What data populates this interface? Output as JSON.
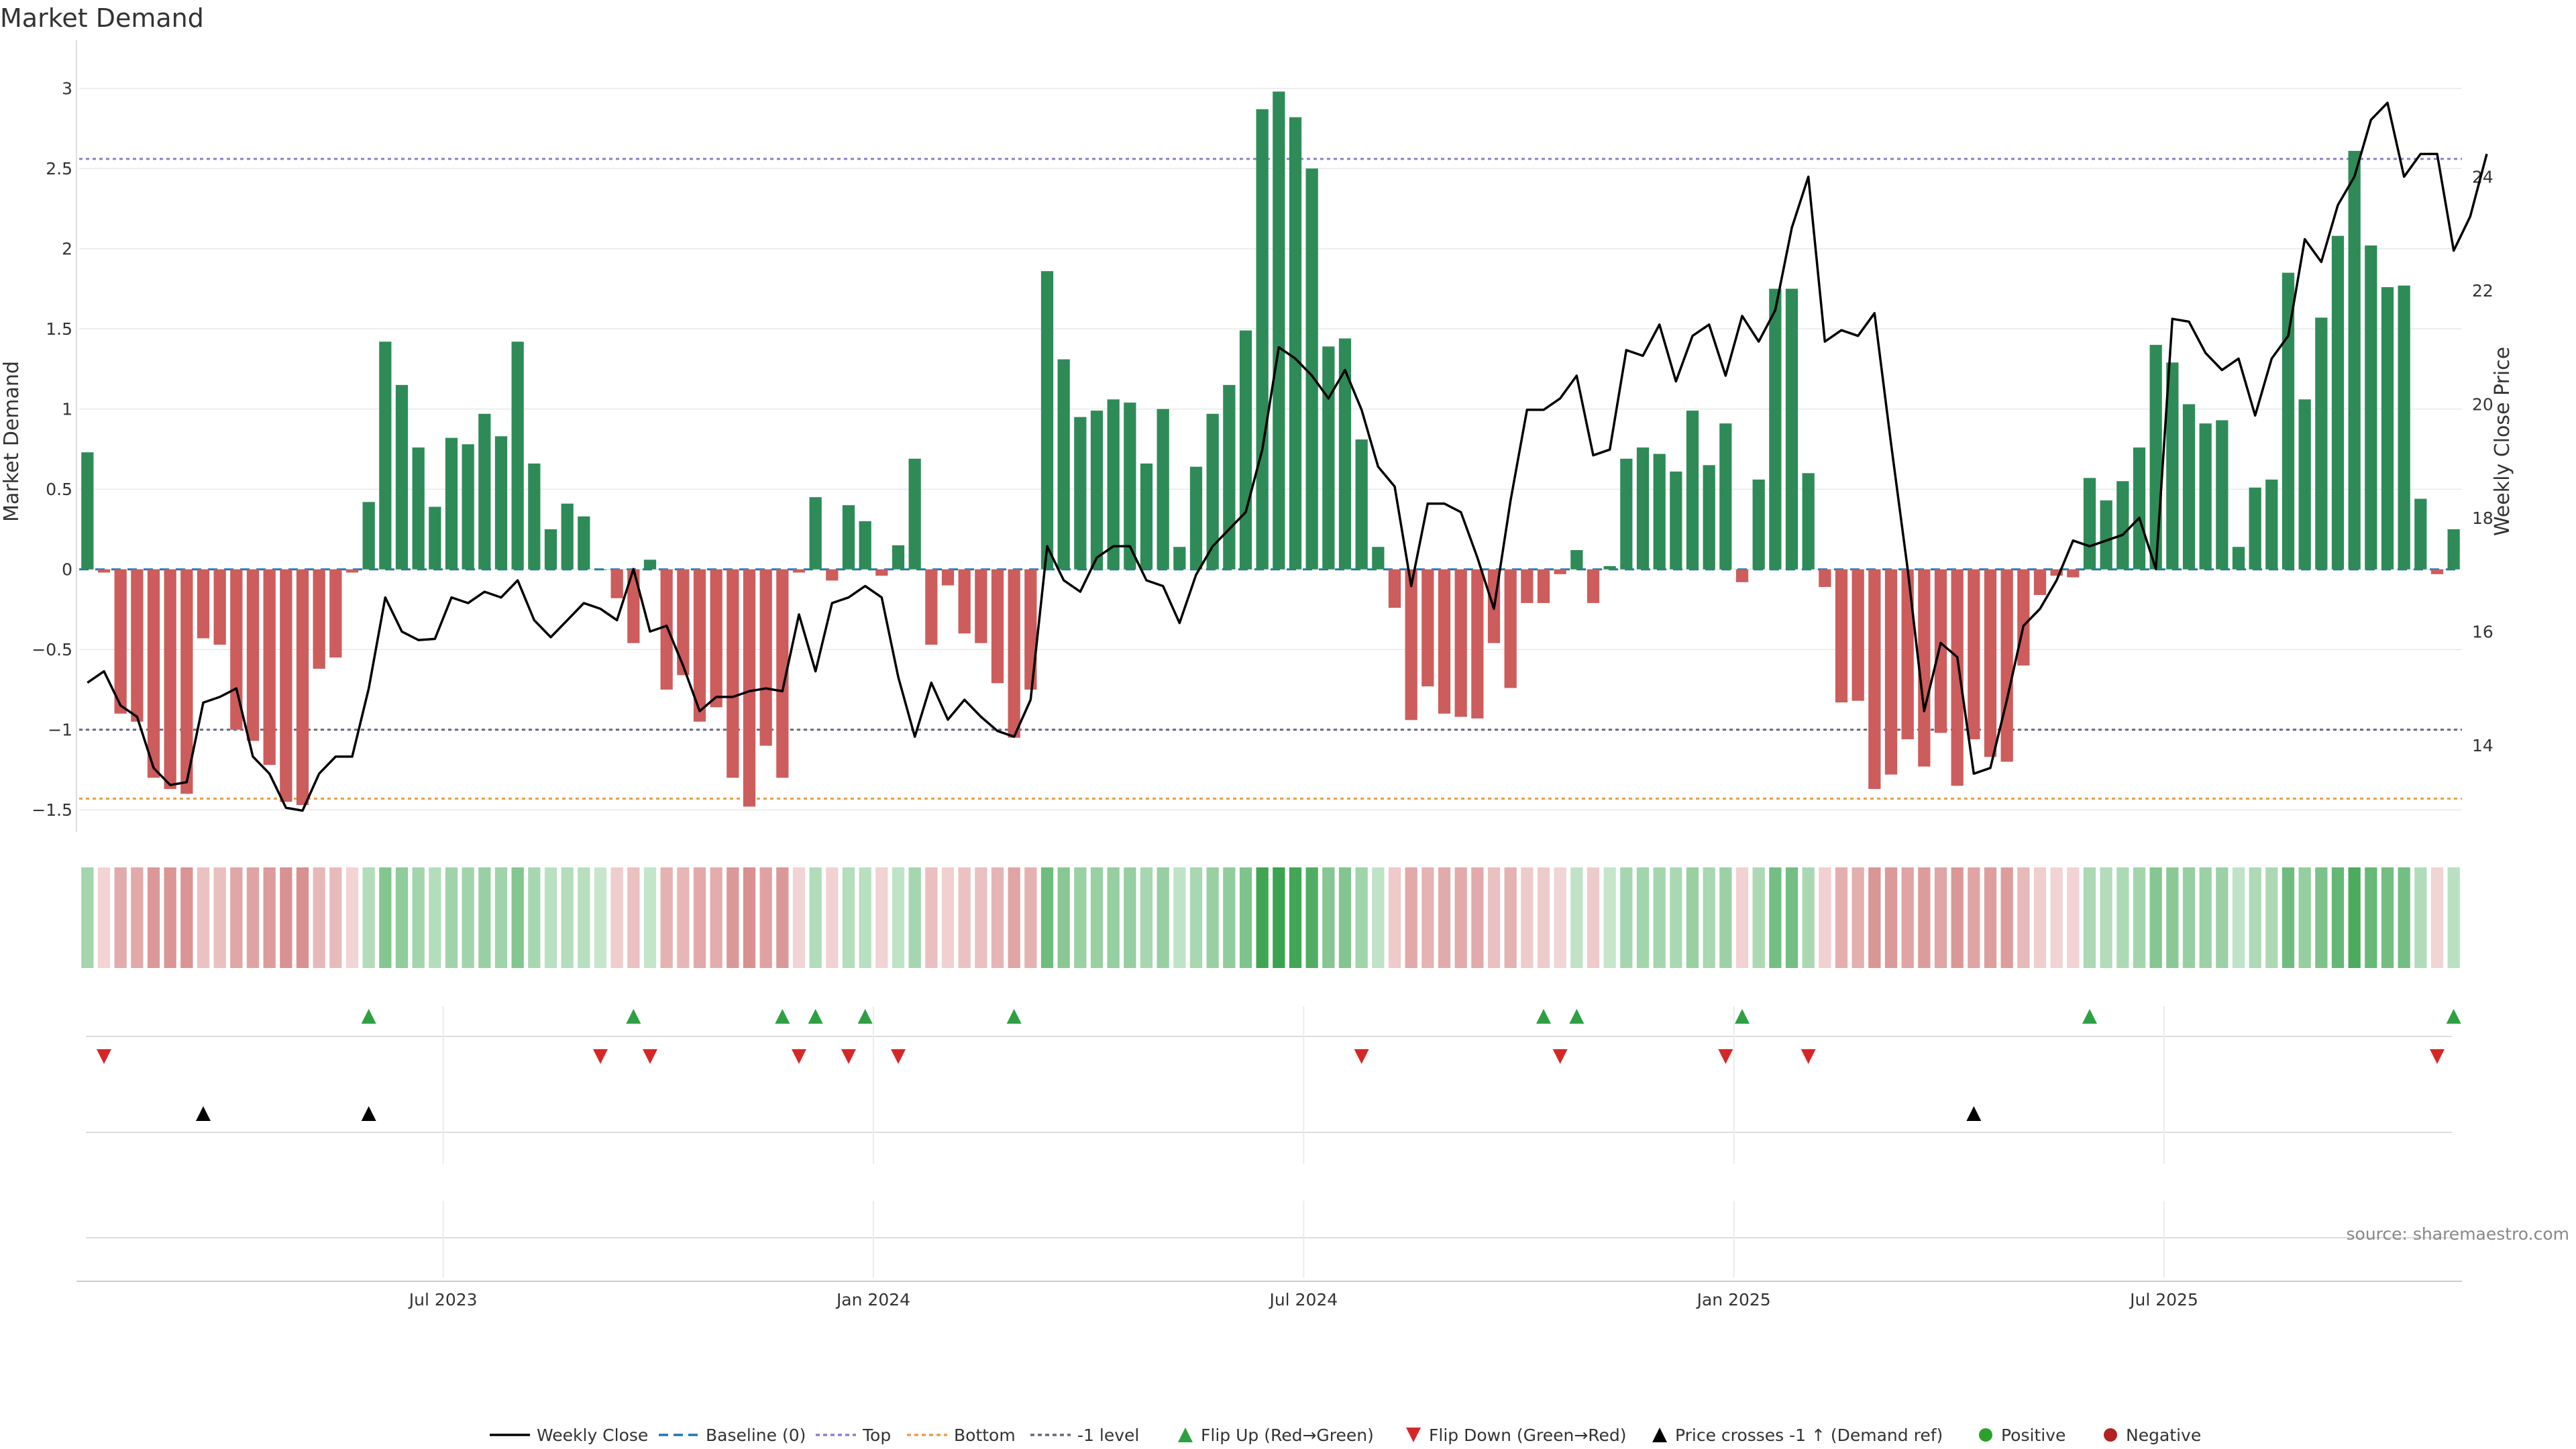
{
  "chart_data": {
    "type": "bar",
    "title": "Market Demand",
    "ylabel": "Market Demand",
    "y2label": "Weekly Close Price",
    "ylim": [
      -1.7,
      3.3
    ],
    "y2lim": [
      12.3,
      26.4
    ],
    "yticks": [
      "3",
      "2.5",
      "2",
      "1.5",
      "1",
      "0.5",
      "0",
      "−0.5",
      "−1",
      "−1.5"
    ],
    "y2ticks": [
      "24",
      "22",
      "20",
      "18",
      "16",
      "14"
    ],
    "reference_lines": {
      "top": 2.56,
      "bottom": -1.43,
      "minus_one": -1.0,
      "baseline": 0
    },
    "xticks": [
      "Jul 2023",
      "Jan 2024",
      "Jul 2024",
      "Jan 2025",
      "Jul 2025"
    ],
    "xtick_weeks": [
      21.5,
      47.5,
      73.5,
      99.5,
      125.5
    ],
    "demand": [
      0.73,
      -0.02,
      -0.9,
      -0.95,
      -1.3,
      -1.37,
      -1.4,
      -0.43,
      -0.47,
      -1.0,
      -1.07,
      -1.22,
      -1.45,
      -1.47,
      -0.62,
      -0.55,
      -0.02,
      0.42,
      1.42,
      1.15,
      0.76,
      0.39,
      0.82,
      0.78,
      0.97,
      0.83,
      1.42,
      0.66,
      0.25,
      0.41,
      0.33,
      0.0,
      -0.18,
      -0.46,
      0.06,
      -0.75,
      -0.66,
      -0.95,
      -0.86,
      -1.3,
      -1.48,
      -1.1,
      -1.3,
      -0.02,
      0.45,
      -0.07,
      0.4,
      0.3,
      -0.04,
      0.15,
      0.69,
      -0.47,
      -0.1,
      -0.4,
      -0.46,
      -0.71,
      -1.05,
      -0.75,
      1.86,
      1.31,
      0.95,
      0.99,
      1.06,
      1.04,
      0.66,
      1.0,
      0.14,
      0.64,
      0.97,
      1.15,
      1.49,
      2.87,
      2.98,
      2.82,
      2.5,
      1.39,
      1.44,
      0.81,
      0.14,
      -0.24,
      -0.94,
      -0.73,
      -0.9,
      -0.92,
      -0.93,
      -0.46,
      -0.74,
      -0.21,
      -0.21,
      -0.03,
      0.12,
      -0.21,
      0.02,
      0.69,
      0.76,
      0.72,
      0.61,
      0.99,
      0.65,
      0.91,
      -0.08,
      0.56,
      1.75,
      1.75,
      0.6,
      -0.11,
      -0.83,
      -0.82,
      -1.37,
      -1.28,
      -1.06,
      -1.23,
      -1.02,
      -1.35,
      -1.06,
      -1.17,
      -1.2,
      -0.6,
      -0.16,
      -0.04,
      -0.05,
      0.57,
      0.43,
      0.55,
      0.76,
      1.4,
      1.29,
      1.03,
      0.91,
      0.93,
      0.14,
      0.51,
      0.56,
      1.85,
      1.06,
      1.57,
      2.08,
      2.61,
      2.02,
      1.76,
      1.77,
      0.44,
      -0.03,
      0.25
    ],
    "price": [
      15.1,
      15.3,
      14.7,
      14.5,
      13.6,
      13.3,
      13.35,
      14.75,
      14.85,
      15.0,
      13.8,
      13.5,
      12.9,
      12.85,
      13.5,
      13.8,
      13.8,
      15.0,
      16.6,
      16.0,
      15.85,
      15.87,
      16.6,
      16.5,
      16.7,
      16.6,
      16.9,
      16.2,
      15.9,
      16.2,
      16.5,
      16.4,
      16.2,
      17.1,
      16.0,
      16.1,
      15.4,
      14.6,
      14.85,
      14.85,
      14.95,
      15.0,
      14.95,
      16.3,
      15.3,
      16.5,
      16.6,
      16.8,
      16.6,
      15.2,
      14.15,
      15.1,
      14.45,
      14.8,
      14.5,
      14.25,
      14.15,
      14.8,
      17.5,
      16.9,
      16.7,
      17.3,
      17.5,
      17.5,
      16.9,
      16.8,
      16.15,
      17.0,
      17.5,
      17.8,
      18.1,
      19.2,
      21.0,
      20.8,
      20.5,
      20.1,
      20.6,
      19.9,
      18.9,
      18.55,
      16.8,
      18.25,
      18.25,
      18.1,
      17.3,
      16.4,
      18.3,
      19.9,
      19.9,
      20.1,
      20.5,
      19.1,
      19.2,
      20.95,
      20.85,
      21.4,
      20.4,
      21.2,
      21.4,
      20.5,
      21.55,
      21.1,
      21.65,
      23.1,
      24.0,
      21.1,
      21.3,
      21.2,
      21.6,
      19.3,
      17.1,
      14.6,
      15.8,
      15.55,
      13.5,
      13.6,
      14.8,
      16.1,
      16.4,
      16.9,
      17.6,
      17.5,
      17.6,
      17.7,
      18.0,
      17.1,
      21.5,
      21.45,
      20.9,
      20.6,
      20.8,
      19.8,
      20.8,
      21.2,
      22.9,
      22.5,
      23.5,
      24.0,
      25.0,
      25.3,
      24.0,
      24.4,
      24.4,
      22.7,
      23.3,
      24.4
    ],
    "flip_up_weeks": [
      17,
      33,
      42,
      44,
      47,
      56,
      88,
      90,
      100,
      121,
      143
    ],
    "flip_down_weeks": [
      1,
      31,
      34,
      43,
      46,
      49,
      77,
      89,
      99,
      104,
      142
    ],
    "price_cross_weeks": [
      7,
      17,
      114
    ],
    "legend": [
      "Weekly Close",
      "Baseline (0)",
      "Top",
      "Bottom",
      "-1 level",
      "Flip Up (Red→Green)",
      "Flip Down (Green→Red)",
      "Price crosses -1 ↑ (Demand ref)",
      "Positive",
      "Negative"
    ],
    "source": "source: sharemaestro.com",
    "colors": {
      "positive": "#2e8b57",
      "negative": "#cd5c5c",
      "price_line": "#000000",
      "baseline": "#1f77b4",
      "top": "#8a7fd0",
      "bottom": "#e6a04a",
      "minus_one": "#666680",
      "flip_up": "#2ea043",
      "flip_down": "#d62728",
      "cross": "#000000",
      "legend_positive": "#2ca02c",
      "legend_negative": "#b22222",
      "grid": "#e8e8e8"
    }
  }
}
